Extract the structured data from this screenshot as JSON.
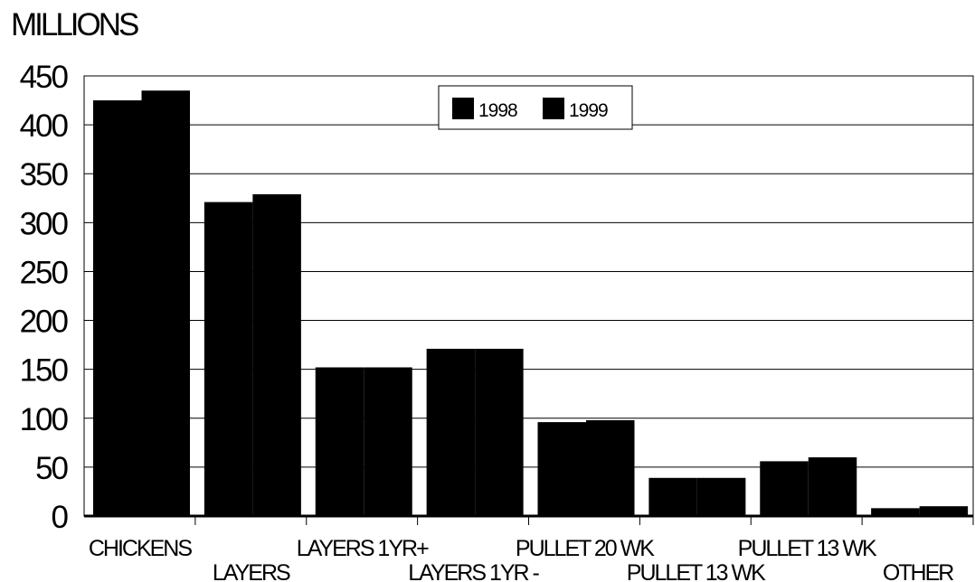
{
  "chart_data": {
    "type": "bar",
    "ylabel": "MILLIONS",
    "title": "",
    "categories": [
      "CHICKENS",
      "LAYERS",
      "LAYERS 1YR+",
      "LAYERS 1YR -",
      "PULLET 20 WK",
      "PULLET 13 WK",
      "PULLET 13 WK",
      "OTHER"
    ],
    "series": [
      {
        "name": "1998",
        "values": [
          425,
          321,
          152,
          171,
          96,
          39,
          56,
          8
        ]
      },
      {
        "name": "1999",
        "values": [
          435,
          329,
          152,
          171,
          98,
          39,
          60,
          10
        ]
      }
    ],
    "ylim": [
      0,
      450
    ],
    "yticks": [
      0,
      50,
      100,
      150,
      200,
      250,
      300,
      350,
      400,
      450
    ],
    "grid": true,
    "legend_position": "top-center",
    "colors": {
      "bar": "#000000",
      "grid": "#000000",
      "background": "#ffffff"
    }
  }
}
